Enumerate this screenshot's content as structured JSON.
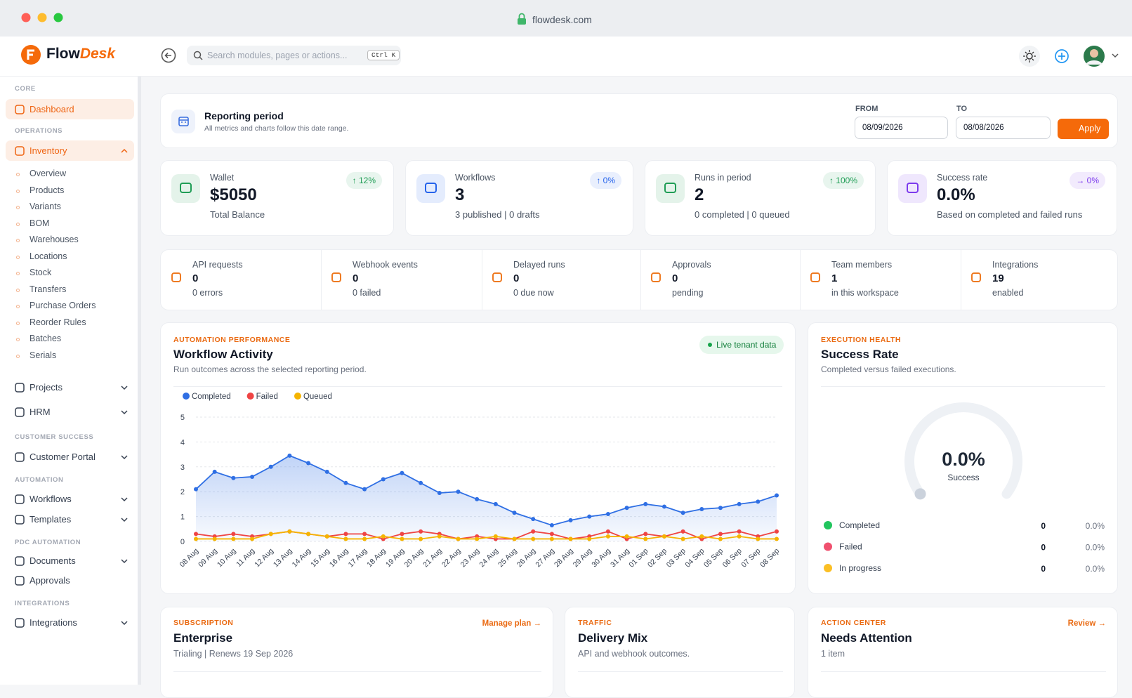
{
  "browser": {
    "url": "flowdesk.com"
  },
  "header": {
    "brand_a": "Flow",
    "brand_b": "Desk",
    "search": "Search modules, pages or actions...",
    "shortcut": "Ctrl K"
  },
  "sidebar": {
    "sections": [
      {
        "label": "CORE",
        "items": [
          {
            "label": "Dashboard"
          }
        ]
      },
      {
        "label": "OPERATIONS",
        "items": [
          {
            "label": "Inventory",
            "children": [
              "Overview",
              "Products",
              "Variants",
              "BOM",
              "Warehouses",
              "Locations",
              "Stock",
              "Transfers",
              "Purchase Orders",
              "Reorder Rules",
              "Batches",
              "Serials"
            ]
          },
          {
            "label": "Projects"
          },
          {
            "label": "HRM"
          }
        ]
      },
      {
        "label": "CUSTOMER SUCCESS",
        "items": [
          {
            "label": "Customer Portal"
          }
        ]
      },
      {
        "label": "AUTOMATION",
        "items": [
          {
            "label": "Workflows"
          },
          {
            "label": "Templates"
          }
        ]
      },
      {
        "label": "PDC AUTOMATION",
        "items": [
          {
            "label": "Documents"
          },
          {
            "label": "Approvals"
          }
        ]
      },
      {
        "label": "INTEGRATIONS",
        "items": [
          {
            "label": "Integrations"
          }
        ]
      }
    ]
  },
  "period": {
    "title": "Reporting period",
    "subtitle": "All metrics and charts follow this date range.",
    "from_label": "FROM",
    "from": "08/09/2026",
    "to_label": "TO",
    "to": "08/08/2026",
    "apply": "Apply"
  },
  "stats": [
    {
      "label": "Wallet",
      "value": "$5050",
      "note": "Total Balance",
      "change": "↑ 12%",
      "color": "#1f9d55"
    },
    {
      "label": "Workflows",
      "value": "3",
      "note": "3 published | 0 drafts",
      "change": "↑ 0%",
      "color": "#2563eb"
    },
    {
      "label": "Runs in period",
      "value": "2",
      "note": "0 completed | 0 queued",
      "change": "↑ 100%",
      "color": "#1f9d55"
    },
    {
      "label": "Success rate",
      "value": "0.0%",
      "note": "Based on completed and failed runs",
      "change": "→ 0%",
      "color": "#7c3aed"
    }
  ],
  "mini_stats": [
    {
      "label": "API requests",
      "value": "0",
      "note": "0 errors"
    },
    {
      "label": "Webhook events",
      "value": "0",
      "note": "0 failed"
    },
    {
      "label": "Delayed runs",
      "value": "0",
      "note": "0 due now"
    },
    {
      "label": "Approvals",
      "value": "0",
      "note": "pending"
    },
    {
      "label": "Team members",
      "value": "1",
      "note": "in this workspace"
    },
    {
      "label": "Integrations",
      "value": "19",
      "note": "enabled"
    }
  ],
  "chart_data": {
    "type": "line",
    "eyebrow": "AUTOMATION PERFORMANCE",
    "title": "Workflow Activity",
    "subtitle": "Run outcomes across the selected reporting period.",
    "badge": "Live tenant data",
    "categories": [
      "08 Aug",
      "09 Aug",
      "10 Aug",
      "11 Aug",
      "12 Aug",
      "13 Aug",
      "14 Aug",
      "15 Aug",
      "16 Aug",
      "17 Aug",
      "18 Aug",
      "19 Aug",
      "20 Aug",
      "21 Aug",
      "22 Aug",
      "23 Aug",
      "24 Aug",
      "25 Aug",
      "26 Aug",
      "27 Aug",
      "28 Aug",
      "29 Aug",
      "30 Aug",
      "31 Aug",
      "01 Sep",
      "02 Sep",
      "03 Sep",
      "04 Sep",
      "05 Sep",
      "06 Sep",
      "07 Sep",
      "08 Sep"
    ],
    "series": [
      {
        "name": "Completed",
        "color": "#2f6fe4",
        "values": [
          2.1,
          2.8,
          2.55,
          2.6,
          3.0,
          3.45,
          3.15,
          2.8,
          2.35,
          2.1,
          2.5,
          2.75,
          2.35,
          1.95,
          2.0,
          1.7,
          1.5,
          1.15,
          0.9,
          0.65,
          0.85,
          1.0,
          1.1,
          1.35,
          1.5,
          1.4,
          1.15,
          1.3,
          1.35,
          1.5,
          1.6,
          1.85
        ]
      },
      {
        "name": "Failed",
        "color": "#ef4444",
        "values": [
          0.3,
          0.2,
          0.3,
          0.2,
          0.3,
          0.4,
          0.3,
          0.2,
          0.3,
          0.3,
          0.1,
          0.3,
          0.4,
          0.3,
          0.1,
          0.2,
          0.1,
          0.1,
          0.4,
          0.3,
          0.1,
          0.2,
          0.4,
          0.1,
          0.3,
          0.2,
          0.4,
          0.1,
          0.3,
          0.4,
          0.2,
          0.4
        ]
      },
      {
        "name": "Queued",
        "color": "#f5b400",
        "values": [
          0.1,
          0.1,
          0.1,
          0.1,
          0.3,
          0.4,
          0.3,
          0.2,
          0.1,
          0.1,
          0.2,
          0.1,
          0.1,
          0.2,
          0.1,
          0.1,
          0.2,
          0.1,
          0.1,
          0.1,
          0.1,
          0.1,
          0.2,
          0.2,
          0.1,
          0.2,
          0.1,
          0.2,
          0.1,
          0.2,
          0.1,
          0.1
        ]
      }
    ],
    "ylim": [
      0,
      5
    ],
    "yticks": [
      0,
      1,
      2,
      3,
      4,
      5
    ],
    "grid": true
  },
  "health": {
    "eyebrow": "EXECUTION HEALTH",
    "title": "Success Rate",
    "subtitle": "Completed versus failed executions.",
    "value": 0,
    "value_label": "0.0%",
    "caption": "Success",
    "rows": [
      {
        "name": "Completed",
        "color": "#22c55e",
        "count": 0,
        "share": "0.0%"
      },
      {
        "name": "Failed",
        "color": "#f0506e",
        "count": 0,
        "share": "0.0%"
      },
      {
        "name": "In progress",
        "color": "#fbbf24",
        "count": 0,
        "share": "0.0%"
      }
    ]
  },
  "bottom": [
    {
      "eyebrow": "SUBSCRIPTION",
      "title": "Enterprise",
      "subtitle": "Trialing | Renews 19 Sep 2026",
      "link": "Manage plan →"
    },
    {
      "eyebrow": "TRAFFIC",
      "title": "Delivery Mix",
      "subtitle": "API and webhook outcomes."
    },
    {
      "eyebrow": "ACTION CENTER",
      "title": "Needs Attention",
      "subtitle": "1 item",
      "link": "Review →"
    }
  ]
}
